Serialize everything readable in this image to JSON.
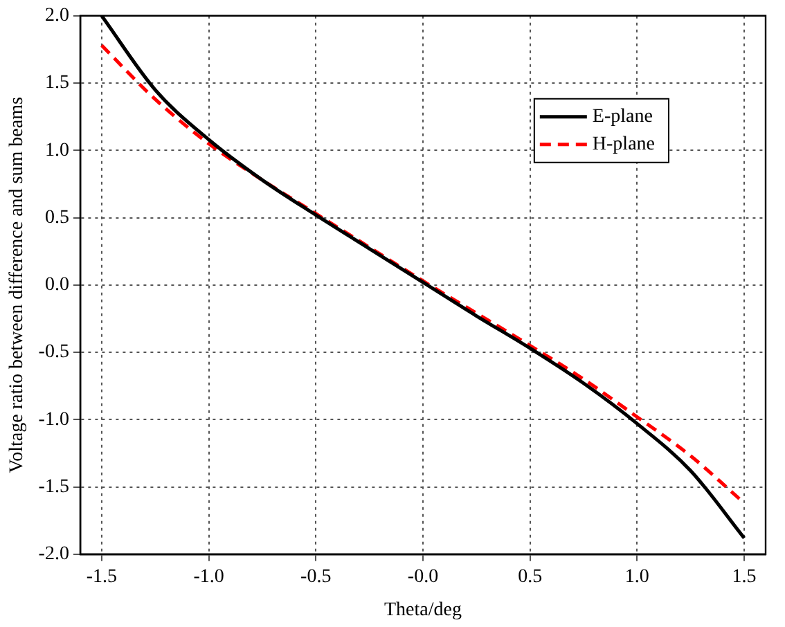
{
  "chart_data": {
    "type": "line",
    "xlabel": "Theta/deg",
    "ylabel": "Voltage ratio between difference and sum beams",
    "xlim": [
      -1.6,
      1.6
    ],
    "xticks": [
      {
        "value": -1.5,
        "label": "-1.5"
      },
      {
        "value": -1,
        "label": "-1.0"
      },
      {
        "value": -0.5,
        "label": "-0.5"
      },
      {
        "value": 0,
        "label": "-0.0"
      },
      {
        "value": 0.5,
        "label": "0.5"
      },
      {
        "value": 1,
        "label": "1.0"
      },
      {
        "value": 1.5,
        "label": "1.5"
      }
    ],
    "ylim": [
      -2,
      2
    ],
    "yticks": [
      {
        "value": -2,
        "label": "-2.0"
      },
      {
        "value": -1.5,
        "label": "-1.5"
      },
      {
        "value": -1,
        "label": "-1.0"
      },
      {
        "value": -0.5,
        "label": "-0.5"
      },
      {
        "value": 0,
        "label": "0.0"
      },
      {
        "value": 0.5,
        "label": "0.5"
      },
      {
        "value": 1,
        "label": "1.0"
      },
      {
        "value": 1.5,
        "label": "1.5"
      },
      {
        "value": 2,
        "label": "2.0"
      }
    ],
    "x": [
      -1.5,
      -1.25,
      -1,
      -0.75,
      -0.5,
      -0.25,
      0,
      0.25,
      0.5,
      0.75,
      1,
      1.25,
      1.5
    ],
    "series": [
      {
        "name": "E-plane",
        "color": "#000000",
        "line_style": "solid",
        "values": [
          2.0,
          1.45,
          1.08,
          0.78,
          0.52,
          0.27,
          0.02,
          -0.23,
          -0.47,
          -0.73,
          -1.03,
          -1.38,
          -1.88
        ]
      },
      {
        "name": "H-plane",
        "color": "#ff0000",
        "line_style": "dashed",
        "values": [
          1.78,
          1.38,
          1.05,
          0.78,
          0.53,
          0.28,
          0.03,
          -0.21,
          -0.45,
          -0.7,
          -0.98,
          -1.27,
          -1.62
        ]
      }
    ],
    "grid": true,
    "legend": "top right",
    "marker": "none"
  }
}
